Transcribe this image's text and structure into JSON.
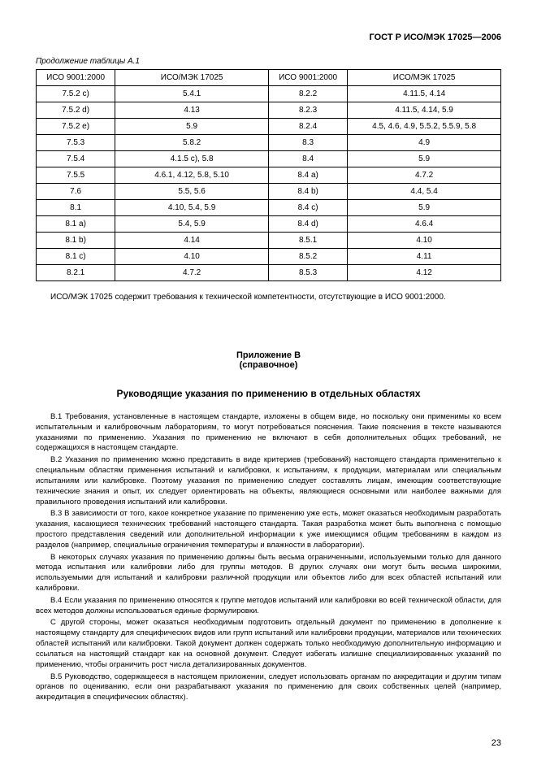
{
  "doc_header": "ГОСТ Р ИСО/МЭК 17025—2006",
  "table_caption": "Продолжение таблицы А.1",
  "columns": [
    "ИСО 9001:2000",
    "ИСО/МЭК 17025",
    "ИСО 9001:2000",
    "ИСО/МЭК 17025"
  ],
  "rows": [
    [
      "7.5.2 c)",
      "5.4.1",
      "8.2.2",
      "4.11.5, 4.14"
    ],
    [
      "7.5.2 d)",
      "4.13",
      "8.2.3",
      "4.11.5, 4.14, 5.9"
    ],
    [
      "7.5.2 e)",
      "5.9",
      "8.2.4",
      "4.5, 4.6, 4.9, 5.5.2, 5.5.9, 5.8"
    ],
    [
      "7.5.3",
      "5.8.2",
      "8.3",
      "4.9"
    ],
    [
      "7.5.4",
      "4.1.5 c), 5.8",
      "8.4",
      "5.9"
    ],
    [
      "7.5.5",
      "4.6.1, 4.12, 5.8, 5.10",
      "8.4 a)",
      "4.7.2"
    ],
    [
      "7.6",
      "5.5, 5.6",
      "8.4 b)",
      "4.4, 5.4"
    ],
    [
      "8.1",
      "4.10, 5.4, 5.9",
      "8.4 c)",
      "5.9"
    ],
    [
      "8.1 a)",
      "5.4, 5.9",
      "8.4 d)",
      "4.6.4"
    ],
    [
      "8.1 b)",
      "4.14",
      "8.5.1",
      "4.10"
    ],
    [
      "8.1 c)",
      "4.10",
      "8.5.2",
      "4.11"
    ],
    [
      "8.2.1",
      "4.7.2",
      "8.5.3",
      "4.12"
    ]
  ],
  "table_note": "ИСО/МЭК 17025 содержит требования к технической компетентности, отсутствующие в ИСО 9001:2000.",
  "annex_label": "Приложение В",
  "annex_sub": "(справочное)",
  "annex_title": "Руководящие указания по применению в отдельных областях",
  "paragraphs": [
    "В.1 Требования, установленные в настоящем стандарте, изложены в общем виде, но поскольку они применимы ко всем испытательным и калибровочным лабораториям, то могут потребоваться пояснения. Такие пояснения в тексте называются указаниями по применению. Указания по применению не включают в себя дополнительных общих требований, не содержащихся в настоящем стандарте.",
    "В.2 Указания по применению можно представить в виде критериев (требований) настоящего стандарта применительно к специальным областям применения испытаний и калибровки, к испытаниям, к продукции, материалам или специальным испытаниям или калибровке. Поэтому указания по применению следует составлять лицам, имеющим соответствующие технические знания и опыт, их следует ориентировать на объекты, являющиеся основными или наиболее важными для правильного проведения испытаний или калибровки.",
    "В.3 В зависимости от того, какое конкретное указание по применению уже есть, может оказаться необходимым разработать указания, касающиеся технических требований настоящего стандарта. Такая разработка может быть выполнена с помощью простого представления сведений или дополнительной информации к уже имеющимся общим требованиям в каждом из разделов (например, специальные ограничения температуры и влажности в лаборатории).",
    "В некоторых случаях указания по применению должны быть весьма ограниченными, используемыми только для данного метода испытания или калибровки либо для группы методов. В других случаях они могут быть весьма широкими, используемыми для испытаний и калибровки различной продукции или объектов либо для всех областей испытаний или калибровки.",
    "В.4 Если указания по применению относятся к группе методов испытаний или калибровки во всей технической области, для всех методов должны использоваться единые формулировки.",
    "С другой стороны, может оказаться необходимым подготовить отдельный документ по применению в дополнение к настоящему стандарту для специфических видов или групп испытаний или калибровки продукции, материалов или технических областей испытаний или калибровки. Такой документ должен содержать только необходимую дополнительную информацию и ссылаться на настоящий стандарт как на основной документ. Следует избегать излишне специализированных указаний по применению, чтобы ограничить рост числа детализированных документов.",
    "В.5 Руководство, содержащееся в настоящем приложении, следует использовать органам по аккредитации и другим типам органов по оцениванию, если они разрабатывают указания по применению для своих собственных целей (например, аккредитация в специфических областях)."
  ],
  "page_number": "23",
  "col_widths": [
    "17%",
    "33%",
    "17%",
    "33%"
  ]
}
